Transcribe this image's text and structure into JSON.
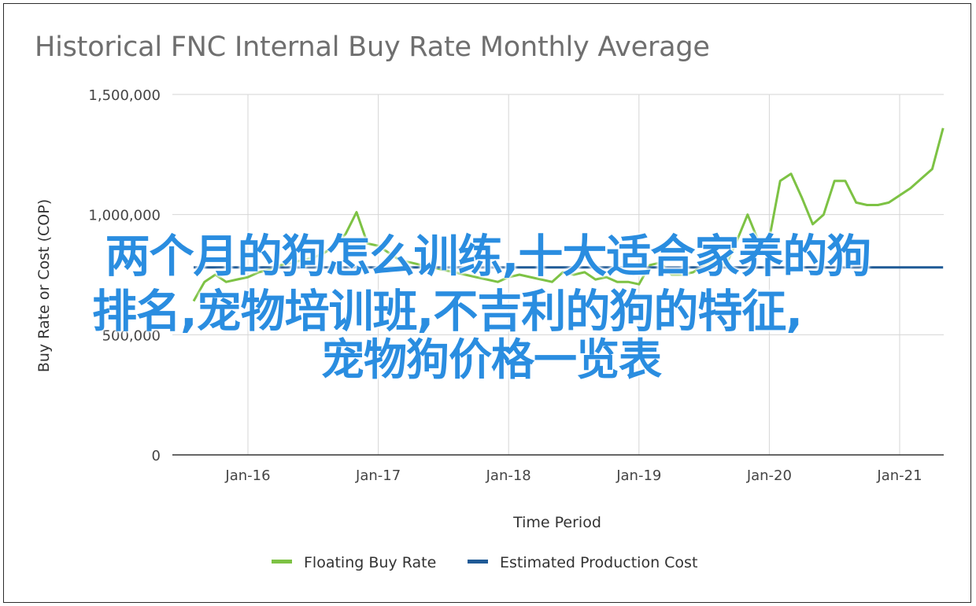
{
  "chart_data": {
    "type": "line",
    "title": "Historical FNC Internal Buy Rate Monthly Average",
    "xlabel": "Time Period",
    "ylabel": "Buy Rate or Cost (COP)",
    "ylim": [
      0,
      1500000
    ],
    "y_ticks": [
      "0",
      "500,000",
      "1,000,000",
      "1,500,000"
    ],
    "x_ticks": [
      "Jan-16",
      "Jan-17",
      "Jan-18",
      "Jan-19",
      "Jan-20",
      "Jan-21"
    ],
    "grid": "vertical and horizontal",
    "legend_position": "bottom",
    "series": [
      {
        "name": "Floating Buy Rate",
        "color": "#7dc244",
        "dates": [
          "2015-08",
          "2015-09",
          "2015-10",
          "2015-11",
          "2015-12",
          "2016-01",
          "2016-02",
          "2016-03",
          "2016-04",
          "2016-05",
          "2016-06",
          "2016-07",
          "2016-08",
          "2016-09",
          "2016-10",
          "2016-11",
          "2016-12",
          "2017-01",
          "2017-02",
          "2017-03",
          "2017-04",
          "2017-05",
          "2017-06",
          "2017-07",
          "2017-08",
          "2017-09",
          "2017-10",
          "2017-11",
          "2017-12",
          "2018-01",
          "2018-02",
          "2018-03",
          "2018-04",
          "2018-05",
          "2018-06",
          "2018-07",
          "2018-08",
          "2018-09",
          "2018-10",
          "2018-11",
          "2018-12",
          "2019-01",
          "2019-02",
          "2019-03",
          "2019-04",
          "2019-05",
          "2019-06",
          "2019-07",
          "2019-08",
          "2019-09",
          "2019-10",
          "2019-11",
          "2019-12",
          "2020-01",
          "2020-02",
          "2020-03",
          "2020-04",
          "2020-05",
          "2020-06",
          "2020-07",
          "2020-08",
          "2020-09",
          "2020-10",
          "2020-11",
          "2020-12",
          "2021-01",
          "2021-02",
          "2021-03",
          "2021-04",
          "2021-05"
        ],
        "values": [
          640000,
          720000,
          750000,
          720000,
          730000,
          740000,
          760000,
          770000,
          790000,
          800000,
          810000,
          820000,
          840000,
          870000,
          920000,
          1010000,
          880000,
          870000,
          840000,
          810000,
          800000,
          790000,
          780000,
          770000,
          760000,
          750000,
          740000,
          730000,
          720000,
          740000,
          750000,
          740000,
          730000,
          720000,
          760000,
          750000,
          760000,
          730000,
          740000,
          720000,
          720000,
          710000,
          790000,
          800000,
          750000,
          750000,
          760000,
          790000,
          810000,
          790000,
          890000,
          1000000,
          890000,
          900000,
          1140000,
          1170000,
          1070000,
          960000,
          1000000,
          1140000,
          1140000,
          1050000,
          1040000,
          1040000,
          1050000,
          1080000,
          1110000,
          1150000,
          1190000,
          1360000
        ]
      },
      {
        "name": "Estimated Production Cost",
        "color": "#1f5a96",
        "dates": [
          "2015-08",
          "2021-05"
        ],
        "values": [
          780000,
          780000
        ]
      }
    ]
  },
  "overlay_text": {
    "line1": "两个月的狗怎么训练,十大适合家养的狗",
    "line2": "排名,宠物培训班,不吉利的狗的特征,",
    "line3": "宠物狗价格一览表"
  }
}
